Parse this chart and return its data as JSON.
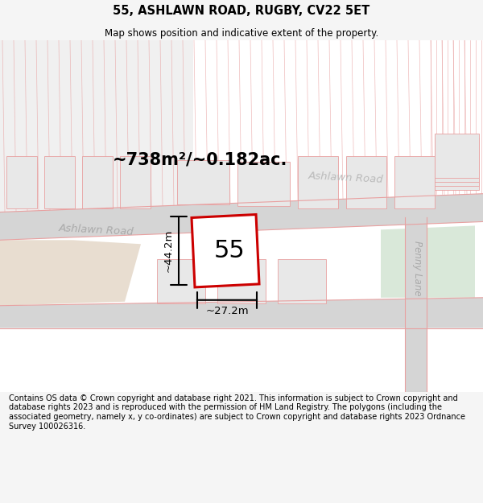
{
  "title": "55, ASHLAWN ROAD, RUGBY, CV22 5ET",
  "subtitle": "Map shows position and indicative extent of the property.",
  "area_label": "~738m²/~0.182ac.",
  "width_label": "~27.2m",
  "height_label": "~44.2m",
  "number_label": "55",
  "road_label_left": "Ashlawn Road",
  "road_label_right": "Ashlawn Road",
  "road_label_vertical": "Penny Lane",
  "footer_text": "Contains OS data © Crown copyright and database right 2021. This information is subject to Crown copyright and database rights 2023 and is reproduced with the permission of HM Land Registry. The polygons (including the associated geometry, namely x, y co-ordinates) are subject to Crown copyright and database rights 2023 Ordnance Survey 100026316.",
  "bg_color": "#f5f5f5",
  "map_bg": "#ffffff",
  "road_gray": "#d5d5d5",
  "road_line_color": "#e8a0a0",
  "property_color": "#cc0000",
  "green_area_color": "#d9e8d9",
  "beige_area_color": "#e8ddd0",
  "building_color": "#e8e8e8",
  "figsize": [
    6.0,
    6.25
  ],
  "dpi": 100
}
